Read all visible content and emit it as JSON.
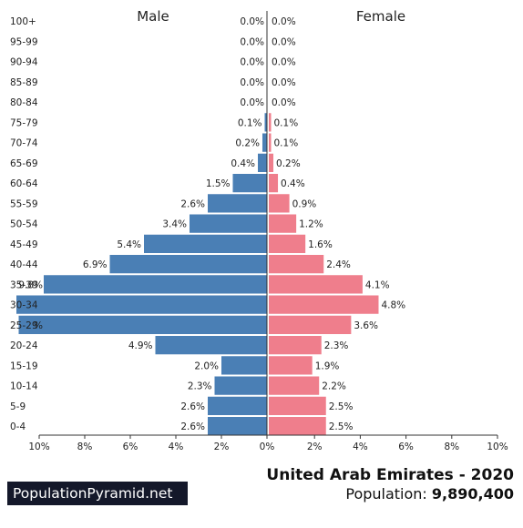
{
  "chart_data": {
    "type": "bar",
    "orientation": "horizontal-population-pyramid",
    "title": "United Arab Emirates - 2020",
    "population_label": "Population:",
    "population_value": "9,890,400",
    "categories": [
      "100+",
      "95-99",
      "90-94",
      "85-89",
      "80-84",
      "75-79",
      "70-74",
      "65-69",
      "60-64",
      "55-59",
      "50-54",
      "45-49",
      "40-44",
      "35-39",
      "30-34",
      "25-29",
      "20-24",
      "15-19",
      "10-14",
      "5-9",
      "0-4"
    ],
    "series": [
      {
        "name": "Male",
        "color": "#4a7fb5",
        "values": [
          0.0,
          0.0,
          0.0,
          0.0,
          0.0,
          0.1,
          0.2,
          0.4,
          1.5,
          2.6,
          3.4,
          5.4,
          6.9,
          9.8,
          11.0,
          10.9,
          4.9,
          2.0,
          2.3,
          2.6,
          2.6
        ],
        "value_labels": [
          "0.0%",
          "0.0%",
          "0.0%",
          "0.0%",
          "0.0%",
          "0.1%",
          "0.2%",
          "0.4%",
          "1.5%",
          "2.6%",
          "3.4%",
          "5.4%",
          "6.9%",
          "9.8%",
          "",
          "%",
          "4.9%",
          "2.0%",
          "2.3%",
          "2.6%",
          "2.6%"
        ]
      },
      {
        "name": "Female",
        "color": "#ef7e8c",
        "values": [
          0.0,
          0.0,
          0.0,
          0.0,
          0.0,
          0.1,
          0.1,
          0.2,
          0.4,
          0.9,
          1.2,
          1.6,
          2.4,
          4.1,
          4.8,
          3.6,
          2.3,
          1.9,
          2.2,
          2.5,
          2.5
        ],
        "value_labels": [
          "0.0%",
          "0.0%",
          "0.0%",
          "0.0%",
          "0.0%",
          "0.1%",
          "0.1%",
          "0.2%",
          "0.4%",
          "0.9%",
          "1.2%",
          "1.6%",
          "2.4%",
          "4.1%",
          "4.8%",
          "3.6%",
          "2.3%",
          "1.9%",
          "2.2%",
          "2.5%",
          "2.5%"
        ]
      }
    ],
    "xlim": [
      -10,
      10
    ],
    "x_ticks": [
      -10,
      -8,
      -6,
      -4,
      -2,
      0,
      2,
      4,
      6,
      8,
      10
    ],
    "x_tick_labels": [
      "10%",
      "8%",
      "6%",
      "4%",
      "2%",
      "0%",
      "2%",
      "4%",
      "6%",
      "8%",
      "10%"
    ],
    "grid": false
  },
  "footer": {
    "brand": "PopulationPyramid.net"
  }
}
